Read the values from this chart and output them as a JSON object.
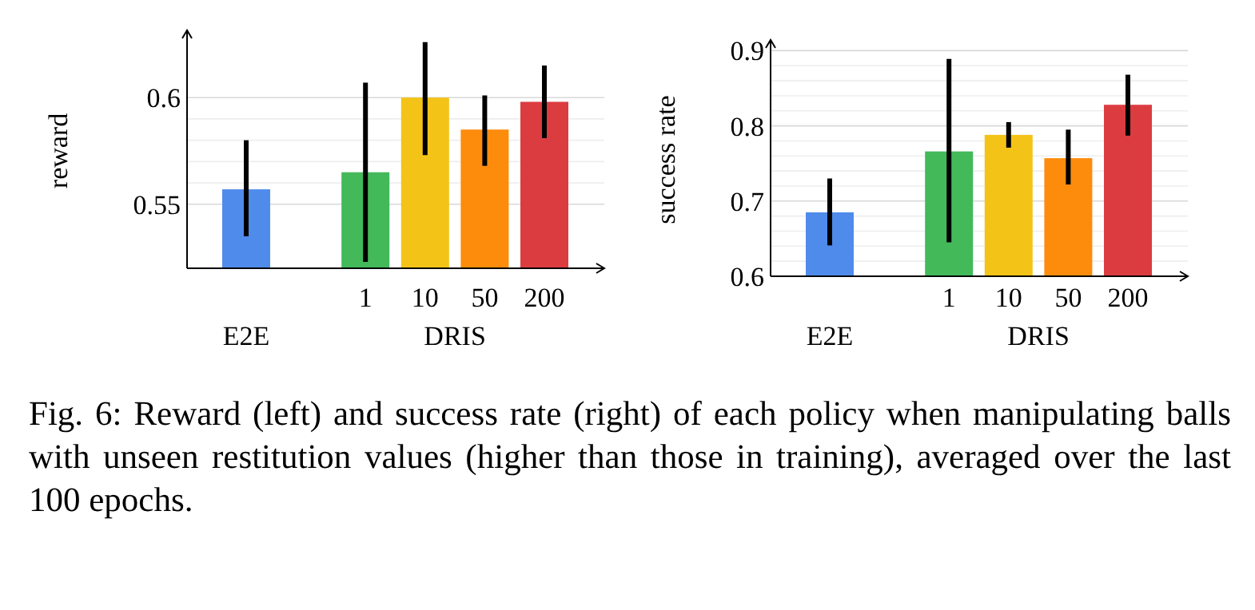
{
  "chart_data": [
    {
      "type": "bar",
      "ylabel": "reward",
      "categories": [
        null,
        null,
        "1",
        "10",
        "50",
        "200"
      ],
      "values": [
        0.557,
        null,
        0.565,
        0.6,
        0.585,
        0.598
      ],
      "colors": [
        "#4f8bea",
        null,
        "#43b95a",
        "#f3c318",
        "#fd8c0c",
        "#db3c40"
      ],
      "errors": [
        [
          0.535,
          0.58
        ],
        null,
        [
          0.523,
          0.607
        ],
        [
          0.573,
          0.626
        ],
        [
          0.568,
          0.601
        ],
        [
          0.581,
          0.615
        ]
      ],
      "ylim": [
        0.52,
        0.63
      ],
      "yticks": [
        0.55,
        {
          "value": 0.56,
          "label": null
        },
        {
          "value": 0.57,
          "label": null
        },
        {
          "value": 0.58,
          "label": null
        },
        {
          "value": 0.59,
          "label": null
        },
        {
          "value": 0.6,
          "label": "0.6"
        }
      ],
      "grid": "y",
      "annotations": [
        "E2E",
        "DRIS",
        "Fig. 6: Reward (left) and success rate (right) of each policy when manipulating balls with unseen restitution values (higher than those in training), averaged over the last 100 epochs."
      ]
    },
    {
      "type": "bar",
      "ylabel": "success rate",
      "categories": [
        null,
        null,
        "1",
        "10",
        "50",
        "200"
      ],
      "values": [
        0.685,
        null,
        0.766,
        0.788,
        0.757,
        0.828
      ],
      "colors": [
        "#4f8bea",
        null,
        "#43b95a",
        "#f3c318",
        "#fd8c0c",
        "#db3c40"
      ],
      "errors": [
        [
          0.641,
          0.73
        ],
        null,
        [
          0.645,
          0.889
        ],
        [
          0.771,
          0.805
        ],
        [
          0.722,
          0.795
        ],
        [
          0.787,
          0.868
        ]
      ],
      "ylim": [
        0.6,
        0.91
      ],
      "yticks": [
        0.6,
        {
          "value": 0.62,
          "label": null
        },
        {
          "value": 0.64,
          "label": null
        },
        {
          "value": 0.66,
          "label": null
        },
        {
          "value": 0.68,
          "label": null
        },
        0.7,
        {
          "value": 0.72,
          "label": null
        },
        {
          "value": 0.74,
          "label": null
        },
        {
          "value": 0.76,
          "label": null
        },
        {
          "value": 0.78,
          "label": null
        },
        0.8,
        {
          "value": 0.82,
          "label": null
        },
        {
          "value": 0.84,
          "label": null
        },
        {
          "value": 0.86,
          "label": null
        },
        {
          "value": 0.88,
          "label": null
        },
        0.9
      ],
      "grid": "y",
      "annotations": [
        "E2E",
        "DRIS"
      ]
    }
  ]
}
